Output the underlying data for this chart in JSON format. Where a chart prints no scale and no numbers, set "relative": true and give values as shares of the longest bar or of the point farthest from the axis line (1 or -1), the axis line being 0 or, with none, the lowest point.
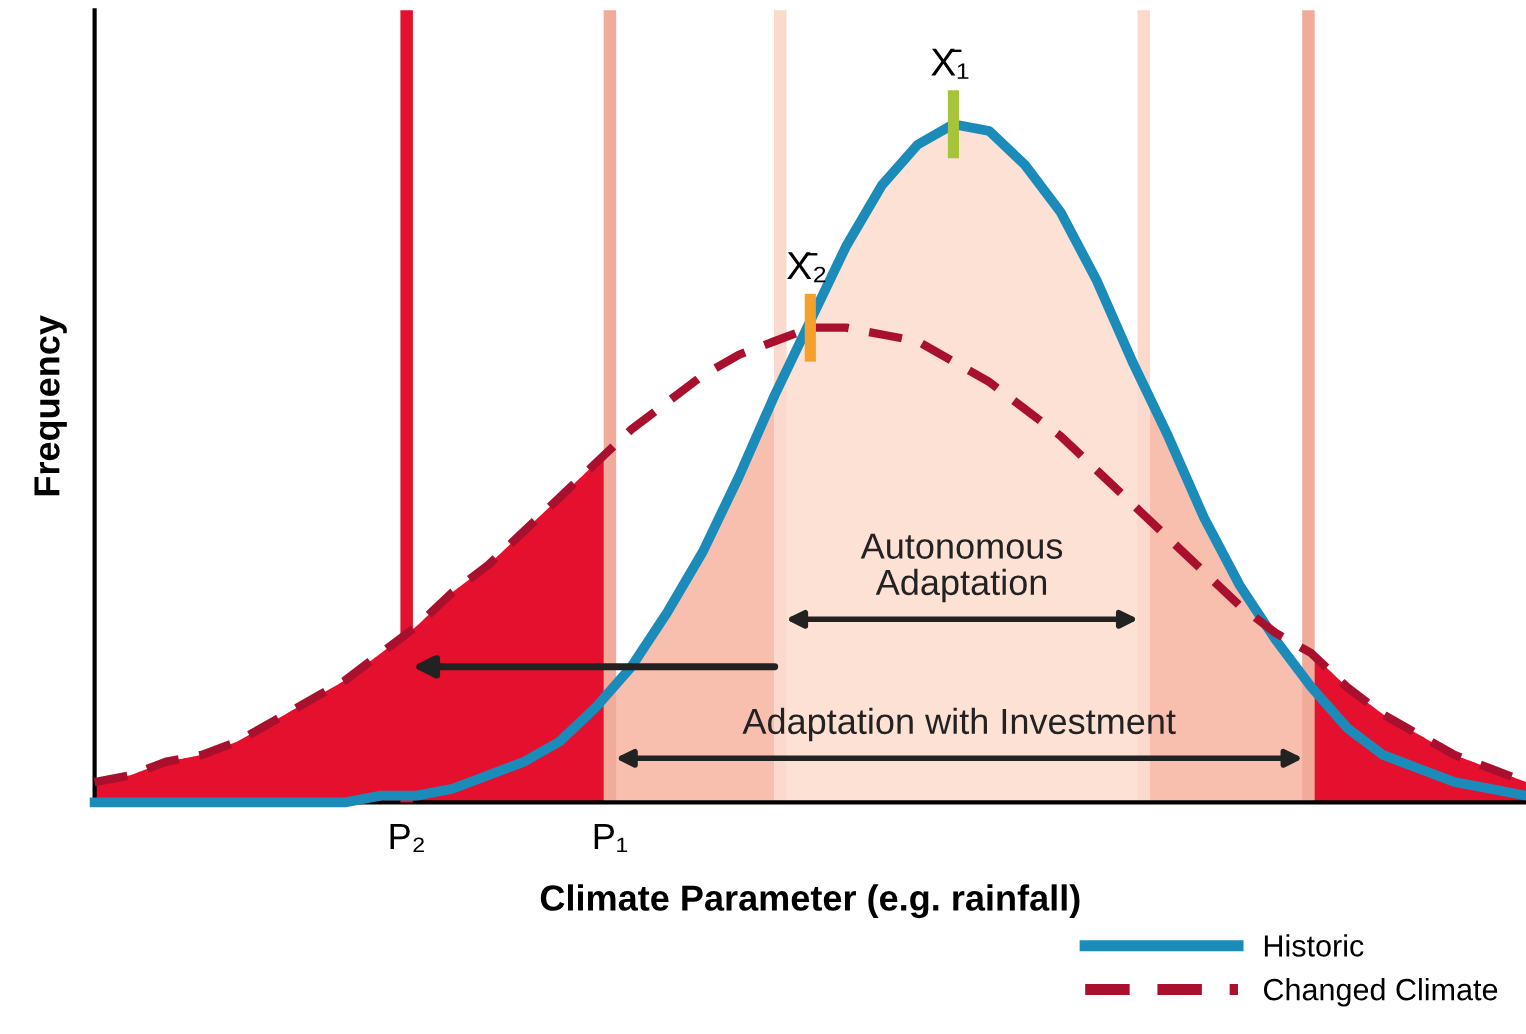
{
  "chart_data": {
    "type": "line",
    "relative": true,
    "xlabel": "Climate Parameter (e.g. rainfall)",
    "ylabel": "Frequency",
    "categories": [
      null,
      null,
      null,
      null,
      null,
      null,
      null,
      null,
      null,
      null,
      null,
      null,
      null,
      null,
      null,
      null,
      null,
      null,
      null,
      null,
      null,
      null,
      null,
      null,
      null,
      null,
      null,
      null,
      null,
      null,
      null,
      null,
      null,
      null,
      null,
      null,
      null,
      null,
      null,
      null,
      null
    ],
    "legend": "bottom right",
    "marker": "none",
    "series": [
      {
        "name": "Historic",
        "color": "#1b8bb9",
        "line_style": "solid",
        "values": [
          0,
          0,
          0,
          0,
          0,
          0,
          0,
          0,
          0.01,
          0.01,
          0.02,
          0.04,
          0.06,
          0.09,
          0.14,
          0.2,
          0.28,
          0.37,
          0.48,
          0.6,
          0.71,
          0.82,
          0.91,
          0.97,
          1.0,
          0.99,
          0.94,
          0.87,
          0.77,
          0.65,
          0.54,
          0.42,
          0.32,
          0.24,
          0.17,
          0.11,
          0.07,
          0.05,
          0.03,
          0.02,
          0.01
        ]
      },
      {
        "name": "Changed Climate",
        "color": "#a8102e",
        "line_style": "dashed",
        "values": [
          0.03,
          0.04,
          0.06,
          0.07,
          0.09,
          0.12,
          0.15,
          0.18,
          0.22,
          0.26,
          0.31,
          0.35,
          0.4,
          0.45,
          0.5,
          0.55,
          0.59,
          0.63,
          0.66,
          0.68,
          0.7,
          0.7,
          0.69,
          0.68,
          0.65,
          0.62,
          0.58,
          0.54,
          0.49,
          0.44,
          0.39,
          0.34,
          0.29,
          0.25,
          0.22,
          0.17,
          0.13,
          0.1,
          0.07,
          0.05,
          0.03
        ]
      }
    ],
    "annotations": [
      "X̄₁",
      "X̄₂",
      "P₂",
      "P₁",
      "Autonomous\nAdaptation",
      "Adaptation with Investment"
    ]
  }
}
